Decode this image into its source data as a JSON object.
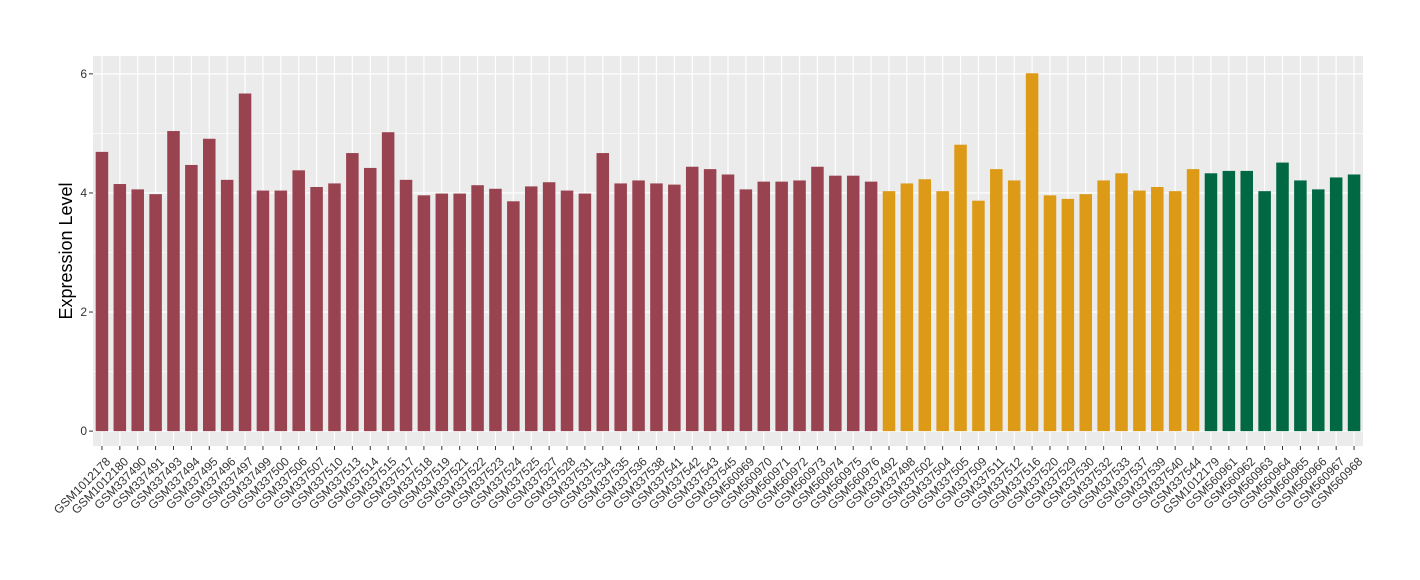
{
  "chart_data": {
    "type": "bar",
    "title": "",
    "xlabel": "",
    "ylabel": "Expression Level",
    "ylim": [
      -0.25,
      6.3
    ],
    "yticks": [
      0,
      2,
      4,
      6
    ],
    "grid": true,
    "legend": "none",
    "colors": {
      "panel_bg": "#ebebeb",
      "grid": "#ffffff",
      "group1": "#9a4350",
      "group2": "#dc9a17",
      "group3": "#006843"
    },
    "categories": [
      "GSM1012178",
      "GSM1012180",
      "GSM337490",
      "GSM337491",
      "GSM337493",
      "GSM337494",
      "GSM337495",
      "GSM337496",
      "GSM337497",
      "GSM337499",
      "GSM337500",
      "GSM337506",
      "GSM337507",
      "GSM337510",
      "GSM337513",
      "GSM337514",
      "GSM337515",
      "GSM337517",
      "GSM337518",
      "GSM337519",
      "GSM337521",
      "GSM337522",
      "GSM337523",
      "GSM337524",
      "GSM337525",
      "GSM337527",
      "GSM337528",
      "GSM337531",
      "GSM337534",
      "GSM337535",
      "GSM337536",
      "GSM337538",
      "GSM337541",
      "GSM337542",
      "GSM337543",
      "GSM337545",
      "GSM560969",
      "GSM560970",
      "GSM560971",
      "GSM560972",
      "GSM560973",
      "GSM560974",
      "GSM560975",
      "GSM560976",
      "GSM337492",
      "GSM337498",
      "GSM337502",
      "GSM337504",
      "GSM337505",
      "GSM337509",
      "GSM337511",
      "GSM337512",
      "GSM337516",
      "GSM337520",
      "GSM337529",
      "GSM337530",
      "GSM337532",
      "GSM337533",
      "GSM337537",
      "GSM337539",
      "GSM337540",
      "GSM337544",
      "GSM1012179",
      "GSM560961",
      "GSM560962",
      "GSM560963",
      "GSM560964",
      "GSM560965",
      "GSM560966",
      "GSM560967",
      "GSM560968"
    ],
    "values": [
      4.69,
      4.15,
      4.06,
      3.98,
      5.04,
      4.47,
      4.91,
      4.22,
      5.67,
      4.04,
      4.04,
      4.38,
      4.1,
      4.16,
      4.67,
      4.42,
      5.02,
      4.22,
      3.96,
      3.99,
      3.99,
      4.13,
      4.07,
      3.86,
      4.11,
      4.18,
      4.04,
      3.99,
      4.67,
      4.16,
      4.21,
      4.16,
      4.14,
      4.44,
      4.4,
      4.31,
      4.06,
      4.19,
      4.19,
      4.21,
      4.44,
      4.29,
      4.29,
      4.19,
      4.03,
      4.16,
      4.23,
      4.03,
      4.81,
      3.87,
      4.4,
      4.21,
      6.01,
      3.96,
      3.9,
      3.98,
      4.21,
      4.33,
      4.04,
      4.1,
      4.03,
      4.4,
      4.33,
      4.37,
      4.37,
      4.03,
      4.51,
      4.21,
      4.06,
      4.26,
      4.31
    ],
    "groups": [
      1,
      1,
      1,
      1,
      1,
      1,
      1,
      1,
      1,
      1,
      1,
      1,
      1,
      1,
      1,
      1,
      1,
      1,
      1,
      1,
      1,
      1,
      1,
      1,
      1,
      1,
      1,
      1,
      1,
      1,
      1,
      1,
      1,
      1,
      1,
      1,
      1,
      1,
      1,
      1,
      1,
      1,
      1,
      1,
      2,
      2,
      2,
      2,
      2,
      2,
      2,
      2,
      2,
      2,
      2,
      2,
      2,
      2,
      2,
      2,
      2,
      2,
      3,
      3,
      3,
      3,
      3,
      3,
      3,
      3,
      3
    ]
  }
}
